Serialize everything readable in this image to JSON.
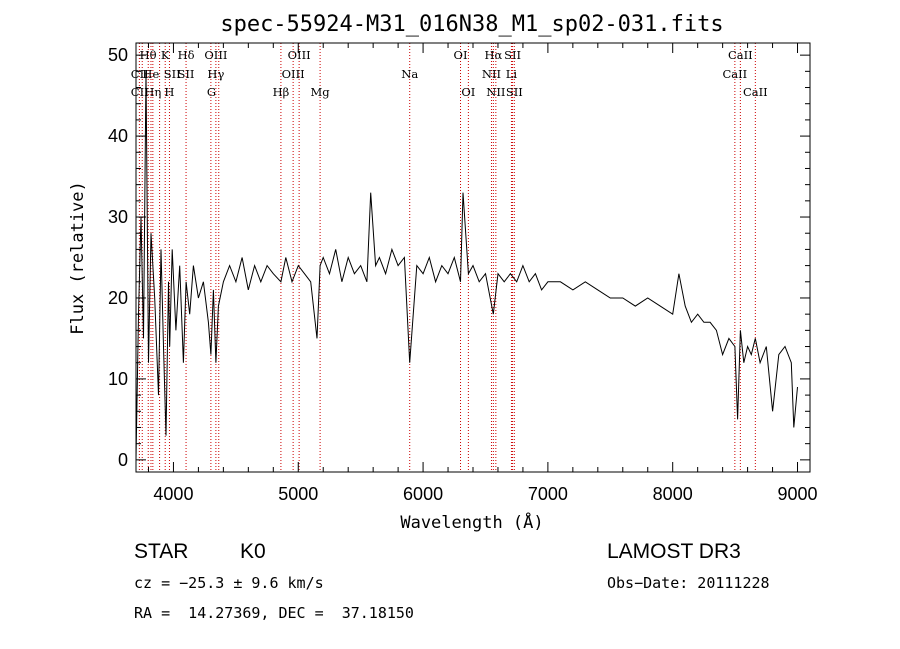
{
  "chart_data": {
    "type": "line",
    "title": "spec-55924-M31_016N38_M1_sp02-031.fits",
    "xlabel": "Wavelength (Å)",
    "ylabel": "Flux (relative)",
    "xlim": [
      3700,
      9100
    ],
    "ylim": [
      -1.5,
      51.5
    ],
    "xticks": [
      4000,
      5000,
      6000,
      7000,
      8000,
      9000
    ],
    "yticks": [
      0,
      10,
      20,
      30,
      40,
      50
    ],
    "xtick_labels": [
      "4000",
      "5000",
      "6000",
      "7000",
      "8000",
      "9000"
    ],
    "ytick_labels": [
      "0",
      "10",
      "20",
      "30",
      "40",
      "50"
    ],
    "grid": false,
    "series": [
      {
        "name": "flux",
        "x": [
          3700,
          3720,
          3740,
          3760,
          3780,
          3800,
          3820,
          3850,
          3880,
          3900,
          3920,
          3940,
          3960,
          3970,
          3990,
          4020,
          4050,
          4080,
          4101,
          4130,
          4160,
          4200,
          4240,
          4280,
          4300,
          4320,
          4340,
          4360,
          4400,
          4450,
          4500,
          4550,
          4600,
          4650,
          4700,
          4750,
          4800,
          4861,
          4900,
          4950,
          5000,
          5050,
          5100,
          5150,
          5175,
          5200,
          5250,
          5300,
          5350,
          5400,
          5450,
          5500,
          5550,
          5580,
          5620,
          5650,
          5700,
          5750,
          5800,
          5850,
          5893,
          5950,
          6000,
          6050,
          6100,
          6150,
          6200,
          6250,
          6300,
          6320,
          6363,
          6400,
          6450,
          6500,
          6563,
          6600,
          6650,
          6700,
          6750,
          6800,
          6850,
          6900,
          6950,
          7000,
          7100,
          7200,
          7300,
          7400,
          7500,
          7600,
          7700,
          7800,
          7900,
          8000,
          8050,
          8100,
          8150,
          8200,
          8250,
          8300,
          8350,
          8400,
          8450,
          8498,
          8520,
          8542,
          8570,
          8600,
          8630,
          8662,
          8700,
          8750,
          8800,
          8850,
          8900,
          8950,
          8970,
          9000
        ],
        "values": [
          0,
          18,
          30,
          15,
          48,
          12,
          28,
          20,
          8,
          26,
          14,
          3,
          22,
          14,
          26,
          16,
          24,
          12,
          22,
          18,
          24,
          20,
          22,
          17,
          13,
          21,
          12,
          19,
          22,
          24,
          22,
          25,
          21,
          24,
          22,
          24,
          23,
          22,
          25,
          22,
          24,
          23,
          22,
          15,
          24,
          25,
          23,
          26,
          22,
          25,
          23,
          24,
          22,
          33,
          24,
          25,
          23,
          26,
          24,
          25,
          12,
          24,
          23,
          25,
          22,
          24,
          23,
          25,
          22,
          33,
          23,
          24,
          22,
          23,
          18,
          23,
          22,
          23,
          22,
          24,
          22,
          23,
          21,
          22,
          22,
          21,
          22,
          21,
          20,
          20,
          19,
          20,
          19,
          18,
          23,
          19,
          17,
          18,
          17,
          17,
          16,
          13,
          15,
          14,
          5,
          16,
          12,
          14,
          13,
          15,
          12,
          14,
          6,
          13,
          14,
          12,
          4,
          9
        ]
      }
    ],
    "annotations": {
      "lines": [
        {
          "label": "Hθ",
          "x": 3797,
          "row": 1
        },
        {
          "label": "CII",
          "x": 3730,
          "row": 2
        },
        {
          "label": "He",
          "x": 3819,
          "row": 2
        },
        {
          "label": "CII",
          "x": 3730,
          "row": 3
        },
        {
          "label": "Hη",
          "x": 3835,
          "row": 3
        },
        {
          "label": "K",
          "x": 3934,
          "row": 1
        },
        {
          "label": "SII",
          "x": 3990,
          "row": 2
        },
        {
          "label": "H",
          "x": 3968,
          "row": 3
        },
        {
          "label": "Hδ",
          "x": 4101,
          "row": 1
        },
        {
          "label": "SII",
          "x": 4100,
          "row": 2
        },
        {
          "label": "OIII",
          "x": 4340,
          "row": 1
        },
        {
          "label": "Hγ",
          "x": 4340,
          "row": 2
        },
        {
          "label": "G",
          "x": 4305,
          "row": 3
        },
        {
          "label": "OIII",
          "x": 5007,
          "row": 1
        },
        {
          "label": "OIII",
          "x": 4959,
          "row": 2
        },
        {
          "label": "Hβ",
          "x": 4861,
          "row": 3
        },
        {
          "label": "Mg",
          "x": 5175,
          "row": 3
        },
        {
          "label": "Na",
          "x": 5893,
          "row": 2
        },
        {
          "label": "OI",
          "x": 6300,
          "row": 1
        },
        {
          "label": "OI",
          "x": 6363,
          "row": 3
        },
        {
          "label": "Hα",
          "x": 6563,
          "row": 1
        },
        {
          "label": "SII",
          "x": 6717,
          "row": 1
        },
        {
          "label": "NII",
          "x": 6548,
          "row": 2
        },
        {
          "label": "Li",
          "x": 6708,
          "row": 2
        },
        {
          "label": "NII",
          "x": 6583,
          "row": 3
        },
        {
          "label": "SII",
          "x": 6731,
          "row": 3
        },
        {
          "label": "CaII",
          "x": 8542,
          "row": 1
        },
        {
          "label": "CaII",
          "x": 8498,
          "row": 2
        },
        {
          "label": "CaII",
          "x": 8662,
          "row": 3
        }
      ],
      "line_markers": [
        3727,
        3750,
        3798,
        3820,
        3835,
        3889,
        3934,
        3968,
        4101,
        4300,
        4340,
        4363,
        4861,
        4959,
        5007,
        5175,
        5893,
        6300,
        6363,
        6548,
        6563,
        6583,
        6708,
        6717,
        6731,
        8498,
        8542,
        8662
      ]
    }
  },
  "info": {
    "class": "STAR",
    "subclass": "K0",
    "survey": "LAMOST DR3",
    "cz": "cz = −25.3 ± 9.6 km/s",
    "obs_date": "Obs−Date: 20111228",
    "coords": "RA =  14.27369, DEC =  37.18150"
  },
  "colors": {
    "marker": "#cc0000",
    "ink": "#000000"
  }
}
